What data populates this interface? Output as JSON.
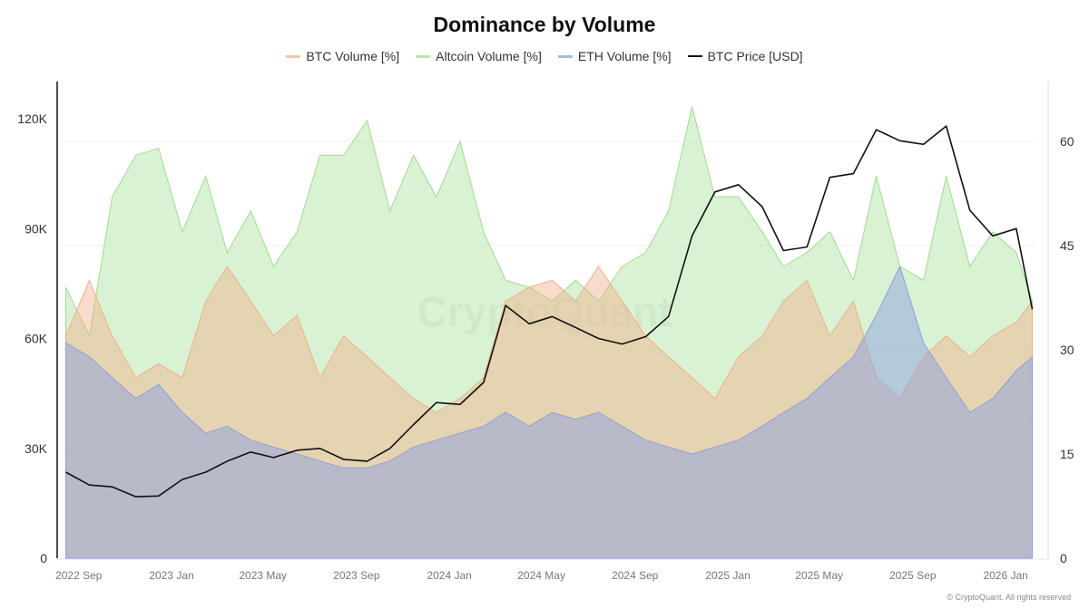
{
  "chart_data": {
    "type": "area",
    "title": "Dominance by Volume",
    "legend_position": "top",
    "grid": true,
    "x": [
      "2022-08-15",
      "2022-09-15",
      "2022-10-15",
      "2022-11-15",
      "2022-12-15",
      "2023-01-15",
      "2023-02-15",
      "2023-03-15",
      "2023-04-15",
      "2023-05-15",
      "2023-06-15",
      "2023-07-15",
      "2023-08-15",
      "2023-09-15",
      "2023-10-15",
      "2023-11-15",
      "2023-12-15",
      "2024-01-15",
      "2024-02-15",
      "2024-03-15",
      "2024-04-15",
      "2024-05-15",
      "2024-06-15",
      "2024-07-15",
      "2024-08-15",
      "2024-09-15",
      "2024-10-15",
      "2024-11-15",
      "2024-12-15",
      "2025-01-15",
      "2025-02-15",
      "2025-03-15",
      "2025-04-15",
      "2025-05-15",
      "2025-06-15",
      "2025-07-15",
      "2025-08-15",
      "2025-09-15",
      "2025-10-15",
      "2025-11-15",
      "2025-12-15",
      "2026-01-15",
      "2026-02-05"
    ],
    "xlim": [
      "2022-08-12",
      "2026-02-08"
    ],
    "x_ticks": [
      "2022 Sep",
      "2023 Jan",
      "2023 May",
      "2023 Sep",
      "2024 Jan",
      "2024 May",
      "2024 Sep",
      "2025 Jan",
      "2025 May",
      "2025 Sep",
      "2026 Jan"
    ],
    "x_tick_dates": [
      "2022-09-01",
      "2023-01-01",
      "2023-05-01",
      "2023-09-01",
      "2024-01-01",
      "2024-05-01",
      "2024-09-01",
      "2025-01-01",
      "2025-05-01",
      "2025-09-01",
      "2026-01-01"
    ],
    "y_left": {
      "label": "",
      "ticks": [
        "0",
        "30K",
        "60K",
        "90K",
        "120K"
      ],
      "tick_values": [
        0,
        30000,
        60000,
        90000,
        120000
      ],
      "range": [
        0,
        130000
      ]
    },
    "y_right": {
      "label": "",
      "ticks": [
        "0",
        "15",
        "30",
        "45",
        "60"
      ],
      "tick_values": [
        0,
        15,
        30,
        45,
        60
      ],
      "range": [
        0,
        68
      ]
    },
    "series": [
      {
        "name": "BTC Volume [%]",
        "axis": "right",
        "kind": "area",
        "color": "#f0b08a",
        "values": [
          32,
          40,
          32,
          26,
          28,
          26,
          37,
          42,
          37,
          32,
          35,
          26,
          32,
          29,
          26,
          23,
          21,
          23,
          26,
          37,
          39,
          40,
          37,
          42,
          37,
          32,
          29,
          26,
          23,
          29,
          32,
          37,
          40,
          32,
          37,
          26,
          23,
          29,
          32,
          29,
          32,
          34,
          37
        ]
      },
      {
        "name": "Altcoin Volume [%]",
        "axis": "right",
        "kind": "area",
        "color": "#9fdc8f",
        "values": [
          39,
          32,
          52,
          58,
          59,
          47,
          55,
          44,
          50,
          42,
          47,
          58,
          58,
          63,
          50,
          58,
          52,
          60,
          47,
          40,
          39,
          37,
          40,
          37,
          42,
          44,
          50,
          65,
          52,
          52,
          47,
          42,
          44,
          47,
          40,
          55,
          42,
          40,
          55,
          42,
          47,
          44,
          37
        ]
      },
      {
        "name": "ETH Volume [%]",
        "axis": "right",
        "kind": "area",
        "color": "#8ea0df",
        "values": [
          31,
          29,
          26,
          23,
          25,
          21,
          18,
          19,
          17,
          16,
          15,
          14,
          13,
          13,
          14,
          16,
          17,
          18,
          19,
          21,
          19,
          21,
          20,
          21,
          19,
          17,
          16,
          15,
          16,
          17,
          19,
          21,
          23,
          26,
          29,
          35,
          42,
          31,
          26,
          21,
          23,
          27,
          29
        ]
      },
      {
        "name": "BTC Price [USD]",
        "axis": "left",
        "kind": "line",
        "color": "#111111",
        "values": [
          23500,
          20000,
          19500,
          16800,
          17000,
          21500,
          23500,
          26500,
          29000,
          27500,
          29500,
          30000,
          27000,
          26500,
          30000,
          36500,
          42500,
          42000,
          48000,
          69000,
          64000,
          66000,
          63000,
          60000,
          58500,
          60500,
          66000,
          88000,
          100000,
          102000,
          96000,
          84000,
          85000,
          104000,
          105000,
          117000,
          114000,
          113000,
          118000,
          95000,
          88000,
          90000,
          68000
        ]
      }
    ]
  },
  "watermark": "CryptoQuant",
  "footer": "© CryptoQuant. All rights reserved"
}
